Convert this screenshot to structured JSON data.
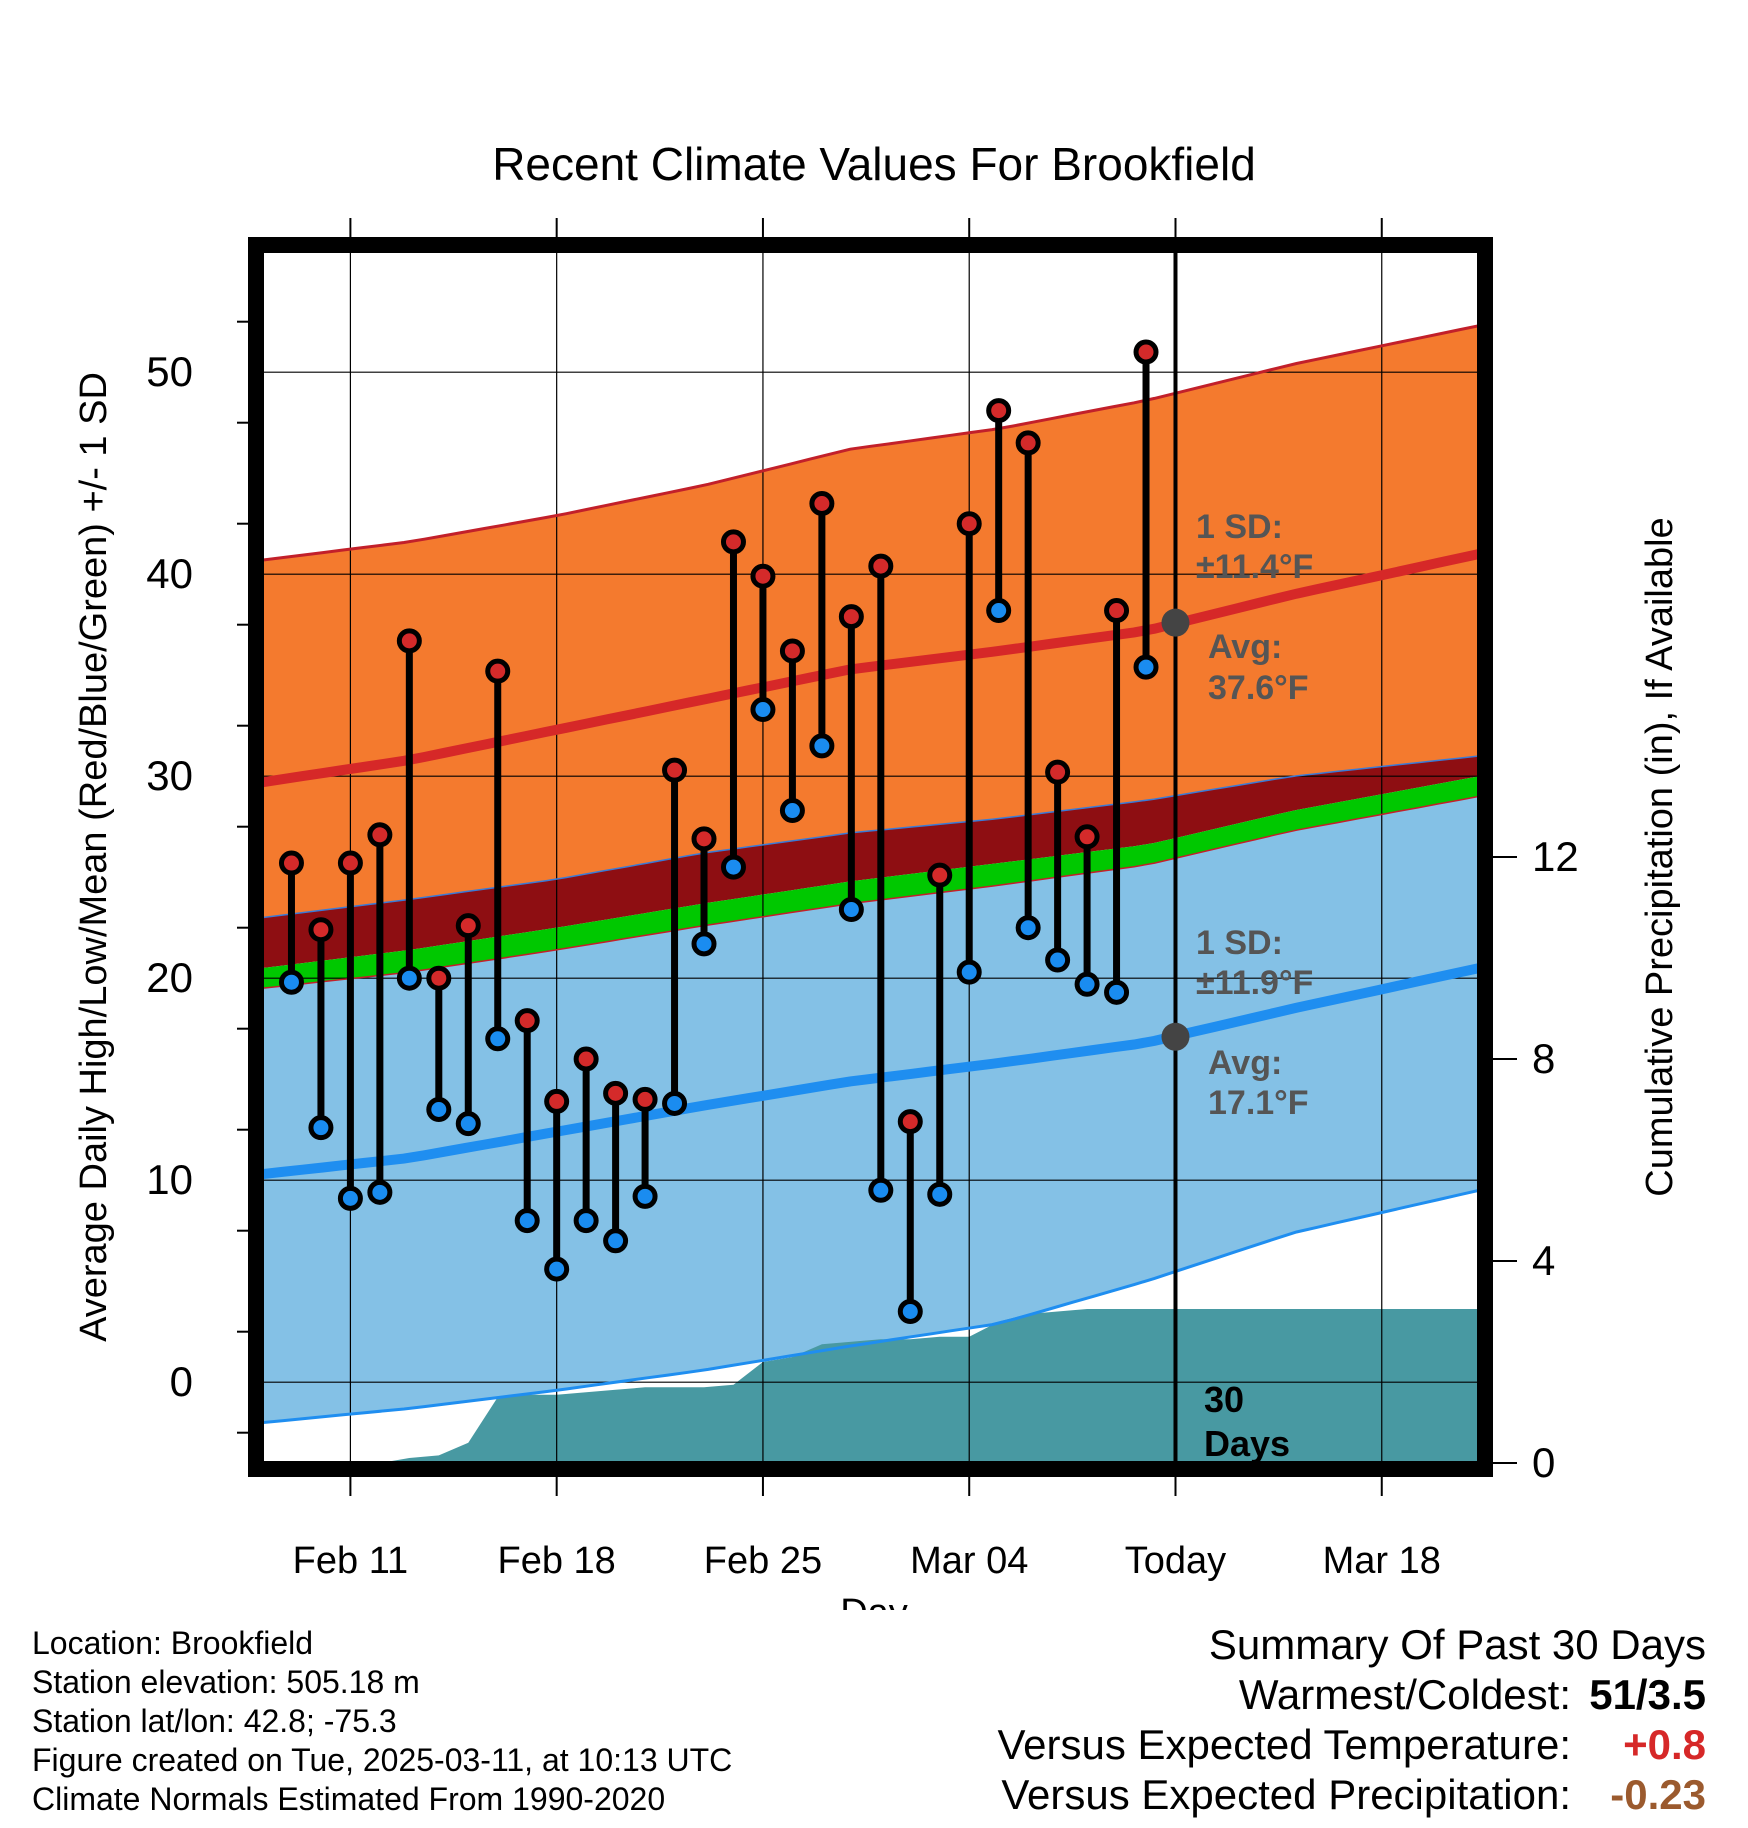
{
  "chart_data": {
    "type": "climate-range",
    "title": "Recent Climate Values For Brookfield",
    "xlabel": "Day",
    "ylabel_left": "Average Daily High/Low/Mean (Red/Blue/Green) +/- 1 SD",
    "ylabel_right": "Cumulative Precipitation (in), If Available",
    "x_ticks": [
      {
        "day": 3,
        "label": "Feb 11"
      },
      {
        "day": 10,
        "label": "Feb 18"
      },
      {
        "day": 17,
        "label": "Feb 25"
      },
      {
        "day": 24,
        "label": "Mar 04"
      },
      {
        "day": 31,
        "label": "Today"
      },
      {
        "day": 38,
        "label": "Mar 18"
      }
    ],
    "xlim": [
      0,
      41.3
    ],
    "ylim_left": [
      -4,
      56
    ],
    "y_ticks_left": [
      0,
      10,
      20,
      30,
      40,
      50
    ],
    "ylim_right": [
      0,
      24
    ],
    "y_ticks_right": [
      0,
      4,
      8,
      12
    ],
    "today_day": 31,
    "days_label": [
      "30",
      "Days"
    ],
    "colors": {
      "high_band": "#f47a2e",
      "high_mean": "#d62828",
      "low_band": "#84c1e6",
      "low_mean": "#1f8ef0",
      "mean_band_dark": "#8e0e12",
      "mean_band_green": "#00c800",
      "precip": "#4899a2",
      "high_dot": "#d42a2a",
      "low_dot": "#1a8cf0",
      "annotation": "#555555",
      "summary_temp": "#d62828",
      "summary_precip": "#9b5a2e"
    },
    "normals": {
      "days": [
        0,
        5,
        10,
        15,
        20,
        25,
        30,
        35,
        41.3
      ],
      "high_mean": [
        29.7,
        30.8,
        32.3,
        33.8,
        35.3,
        36.2,
        37.2,
        39.0,
        41.0
      ],
      "high_upper": [
        40.7,
        41.6,
        42.9,
        44.4,
        46.2,
        47.2,
        48.6,
        50.4,
        52.3
      ],
      "low_mean": [
        10.3,
        11.1,
        12.4,
        13.7,
        14.9,
        15.8,
        16.8,
        18.5,
        20.5
      ],
      "low_lower": [
        -2.0,
        -1.3,
        -0.4,
        0.6,
        1.8,
        2.9,
        5.0,
        7.4,
        9.5
      ],
      "mean_upper": [
        23.0,
        23.9,
        24.9,
        26.2,
        27.2,
        27.9,
        28.8,
        30.0,
        31.0
      ],
      "mean_mid": [
        20.5,
        21.4,
        22.5,
        23.7,
        24.8,
        25.7,
        26.6,
        28.3,
        30.0
      ],
      "mean_lower": [
        19.5,
        20.3,
        21.4,
        22.6,
        23.7,
        24.6,
        25.6,
        27.3,
        29.0
      ]
    },
    "daily": [
      {
        "day": 1,
        "high": 25.7,
        "low": 19.8
      },
      {
        "day": 2,
        "high": 22.4,
        "low": 12.6
      },
      {
        "day": 3,
        "high": 25.7,
        "low": 9.1
      },
      {
        "day": 4,
        "high": 27.1,
        "low": 9.4
      },
      {
        "day": 5,
        "high": 36.7,
        "low": 20.0
      },
      {
        "day": 6,
        "high": 20.0,
        "low": 13.5
      },
      {
        "day": 7,
        "high": 22.6,
        "low": 12.8
      },
      {
        "day": 8,
        "high": 35.2,
        "low": 17.0
      },
      {
        "day": 9,
        "high": 17.9,
        "low": 8.0
      },
      {
        "day": 10,
        "high": 13.9,
        "low": 5.6
      },
      {
        "day": 11,
        "high": 16.0,
        "low": 8.0
      },
      {
        "day": 12,
        "high": 14.3,
        "low": 7.0
      },
      {
        "day": 13,
        "high": 14.0,
        "low": 9.2
      },
      {
        "day": 14,
        "high": 30.3,
        "low": 13.8
      },
      {
        "day": 15,
        "high": 26.9,
        "low": 21.7
      },
      {
        "day": 16,
        "high": 41.6,
        "low": 25.5
      },
      {
        "day": 17,
        "high": 39.9,
        "low": 33.3
      },
      {
        "day": 18,
        "high": 36.2,
        "low": 28.3
      },
      {
        "day": 19,
        "high": 43.5,
        "low": 31.5
      },
      {
        "day": 20,
        "high": 37.9,
        "low": 23.4
      },
      {
        "day": 21,
        "high": 40.4,
        "low": 9.5
      },
      {
        "day": 22,
        "high": 12.9,
        "low": 3.5
      },
      {
        "day": 23,
        "high": 25.1,
        "low": 9.3
      },
      {
        "day": 24,
        "high": 42.5,
        "low": 20.3
      },
      {
        "day": 25,
        "high": 48.1,
        "low": 38.2
      },
      {
        "day": 26,
        "high": 46.5,
        "low": 22.5
      },
      {
        "day": 27,
        "high": 30.2,
        "low": 20.9
      },
      {
        "day": 28,
        "high": 27.0,
        "low": 19.7
      },
      {
        "day": 29,
        "high": 38.2,
        "low": 19.3
      },
      {
        "day": 30,
        "high": 51.0,
        "low": 35.4
      }
    ],
    "precip_cumulative": {
      "days": [
        1,
        3,
        4,
        5,
        6,
        7,
        8,
        9,
        10,
        11,
        12,
        13,
        14,
        15,
        16,
        17,
        18,
        19,
        20,
        21,
        22,
        23,
        24,
        25,
        26,
        27,
        28,
        29,
        30,
        31,
        41.3
      ],
      "values": [
        0.0,
        0.0,
        0.0,
        0.1,
        0.15,
        0.4,
        1.3,
        1.35,
        1.35,
        1.4,
        1.45,
        1.5,
        1.5,
        1.5,
        1.55,
        2.0,
        2.1,
        2.35,
        2.4,
        2.45,
        2.45,
        2.5,
        2.5,
        2.8,
        2.95,
        3.0,
        3.05,
        3.05,
        3.05,
        3.05,
        3.05
      ]
    },
    "annotations": {
      "high": {
        "sd_label": "1 SD:",
        "sd_value": "±11.4°F",
        "avg_label": "Avg:",
        "avg_value": "37.6°F",
        "avg": 37.6
      },
      "low": {
        "sd_label": "1 SD:",
        "sd_value": "±11.9°F",
        "avg_label": "Avg:",
        "avg_value": "17.1°F",
        "avg": 17.1
      }
    }
  },
  "footer": {
    "location": "Location: Brookfield",
    "elevation": "Station elevation: 505.18 m",
    "latlon": "Station lat/lon: 42.8; -75.3",
    "created": "Figure created on Tue, 2025-03-11, at 10:13 UTC",
    "normals": "Climate Normals Estimated From 1990-2020"
  },
  "summary": {
    "title": "Summary Of Past 30 Days",
    "warmest_label": "Warmest/Coldest:",
    "warmest_value": "51/3.5",
    "temp_label": "Versus Expected Temperature:",
    "temp_value": "+0.8",
    "precip_label": "Versus Expected Precipitation:",
    "precip_value": "-0.23"
  }
}
